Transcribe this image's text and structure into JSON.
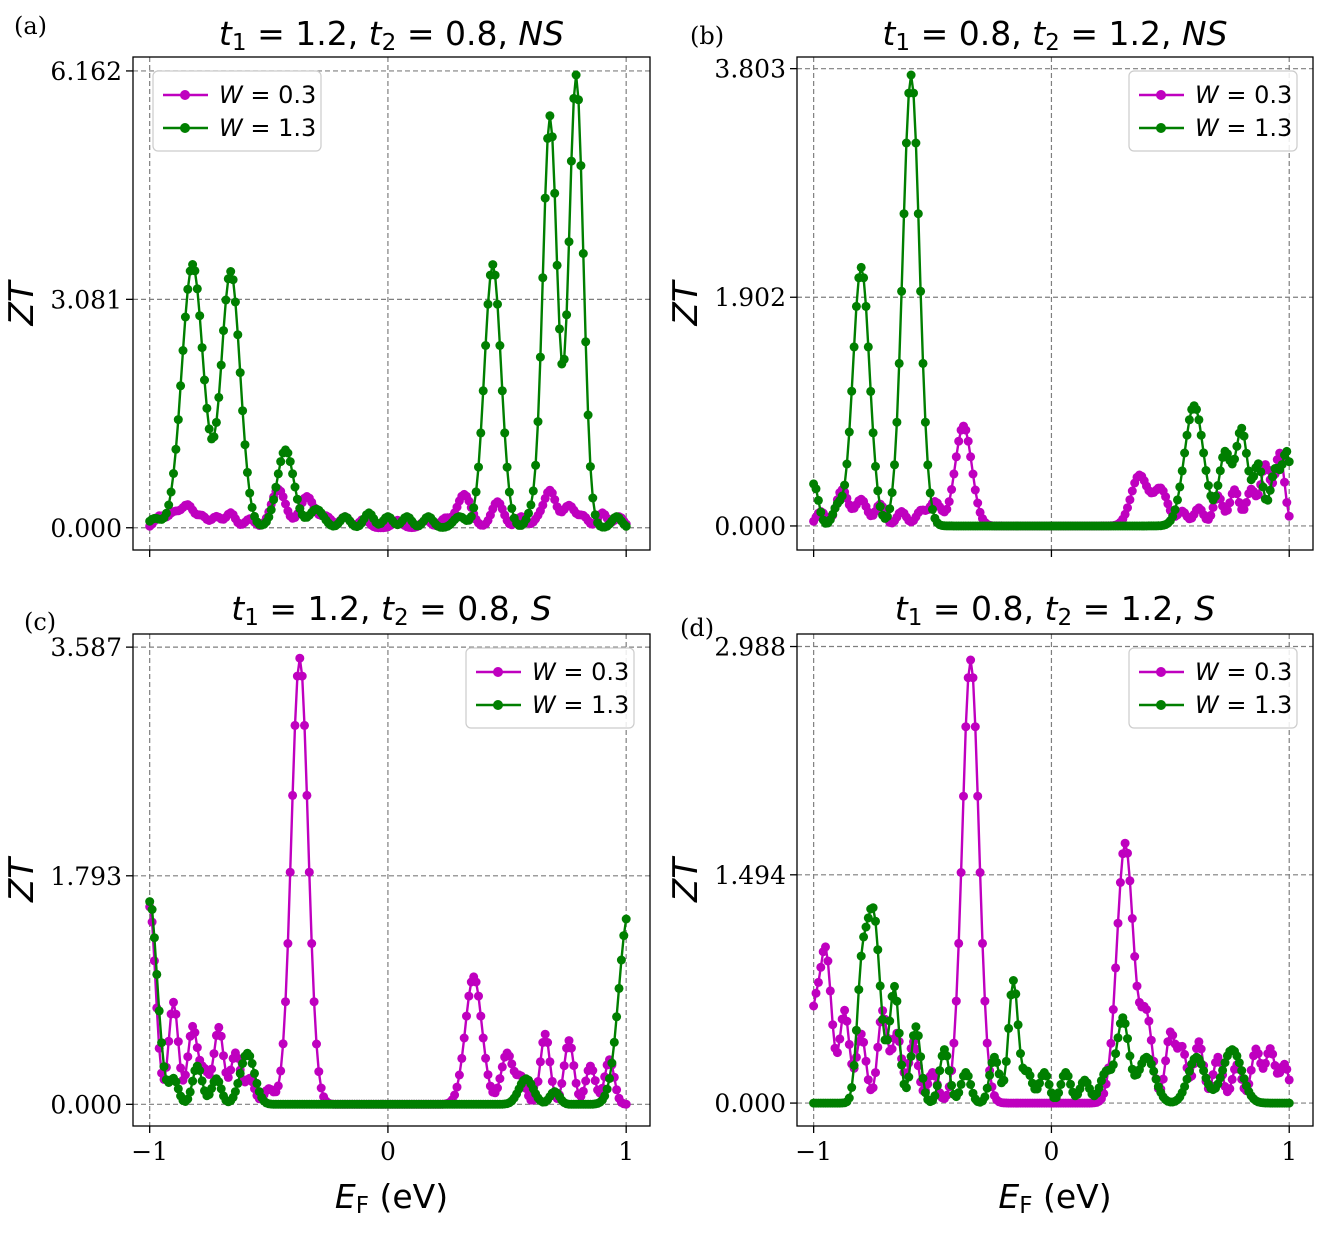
{
  "chart_data": [
    {
      "type": "line",
      "panel_label": "(a)",
      "title_parts": [
        "t",
        "1",
        " = 1.2, ",
        "t",
        "2",
        " = 0.8, ",
        "NS"
      ],
      "xlabel_parts": [
        "E",
        "F",
        " (eV)"
      ],
      "ylabel": "ZT",
      "xlim": [
        -1.07,
        1.1
      ],
      "ylim": [
        -0.3,
        6.35
      ],
      "xticks": [
        -1,
        0,
        1
      ],
      "xtick_labels": [
        "",
        "",
        ""
      ],
      "yticks": [
        0.0,
        3.081,
        6.162
      ],
      "ytick_labels": [
        "0.000",
        "3.081",
        "6.162"
      ],
      "grid": true,
      "legend_position": "upper left",
      "series": [
        {
          "name_parts": [
            "W",
            " = 0.3"
          ],
          "color": "#bf00bf",
          "peaks": [
            [
              -0.96,
              0.15,
              0.02
            ],
            [
              -0.9,
              0.2,
              0.025
            ],
            [
              -0.84,
              0.3,
              0.025
            ],
            [
              -0.78,
              0.15,
              0.02
            ],
            [
              -0.72,
              0.15,
              0.02
            ],
            [
              -0.66,
              0.2,
              0.02
            ],
            [
              -0.58,
              0.12,
              0.02
            ],
            [
              -0.46,
              0.52,
              0.03
            ],
            [
              -0.34,
              0.42,
              0.03
            ],
            [
              -0.26,
              0.15,
              0.025
            ],
            [
              -0.18,
              0.15,
              0.02
            ],
            [
              -0.1,
              0.12,
              0.02
            ],
            [
              0.04,
              0.1,
              0.02
            ],
            [
              0.16,
              0.1,
              0.02
            ],
            [
              0.24,
              0.12,
              0.02
            ],
            [
              0.32,
              0.45,
              0.03
            ],
            [
              0.46,
              0.35,
              0.025
            ],
            [
              0.56,
              0.15,
              0.02
            ],
            [
              0.63,
              0.1,
              0.02
            ],
            [
              0.68,
              0.5,
              0.025
            ],
            [
              0.76,
              0.3,
              0.025
            ],
            [
              0.82,
              0.15,
              0.02
            ],
            [
              0.9,
              0.2,
              0.02
            ],
            [
              0.97,
              0.15,
              0.02
            ]
          ]
        },
        {
          "name_parts": [
            "W",
            " = 1.3"
          ],
          "color": "#007f00",
          "peaks": [
            [
              -0.98,
              0.12,
              0.025
            ],
            [
              -0.82,
              3.55,
              0.045
            ],
            [
              -0.66,
              3.45,
              0.04
            ],
            [
              -0.43,
              1.05,
              0.035
            ],
            [
              -0.3,
              0.25,
              0.03
            ],
            [
              -0.18,
              0.15,
              0.02
            ],
            [
              -0.08,
              0.2,
              0.02
            ],
            [
              0.0,
              0.15,
              0.02
            ],
            [
              0.08,
              0.15,
              0.02
            ],
            [
              0.17,
              0.15,
              0.02
            ],
            [
              0.3,
              0.15,
              0.025
            ],
            [
              0.44,
              3.55,
              0.035
            ],
            [
              0.6,
              0.15,
              0.02
            ],
            [
              0.68,
              5.55,
              0.03
            ],
            [
              0.79,
              6.1,
              0.03
            ],
            [
              0.96,
              0.15,
              0.02
            ]
          ]
        }
      ]
    },
    {
      "type": "line",
      "panel_label": "(b)",
      "title_parts": [
        "t",
        "1",
        " = 0.8, ",
        "t",
        "2",
        " = 1.2, ",
        "NS"
      ],
      "xlabel_parts": [
        "E",
        "F",
        " (eV)"
      ],
      "ylabel": "ZT",
      "xlim": [
        -1.07,
        1.1
      ],
      "ylim": [
        -0.2,
        3.9
      ],
      "xticks": [
        -1,
        0,
        1
      ],
      "xtick_labels": [
        "",
        "",
        ""
      ],
      "yticks": [
        0.0,
        1.902,
        3.803
      ],
      "ytick_labels": [
        "0.000",
        "1.902",
        "3.803"
      ],
      "grid": true,
      "legend_position": "upper right",
      "series": [
        {
          "name_parts": [
            "W",
            " = 0.3"
          ],
          "color": "#bf00bf",
          "peaks": [
            [
              -0.97,
              0.12,
              0.02
            ],
            [
              -0.88,
              0.3,
              0.025
            ],
            [
              -0.8,
              0.22,
              0.025
            ],
            [
              -0.72,
              0.18,
              0.02
            ],
            [
              -0.63,
              0.12,
              0.02
            ],
            [
              -0.55,
              0.12,
              0.02
            ],
            [
              -0.49,
              0.2,
              0.025
            ],
            [
              -0.37,
              0.83,
              0.035
            ],
            [
              0.37,
              0.42,
              0.035
            ],
            [
              0.46,
              0.3,
              0.03
            ],
            [
              0.55,
              0.12,
              0.02
            ],
            [
              0.62,
              0.15,
              0.02
            ],
            [
              0.7,
              0.25,
              0.02
            ],
            [
              0.77,
              0.3,
              0.02
            ],
            [
              0.84,
              0.3,
              0.02
            ],
            [
              0.9,
              0.5,
              0.02
            ],
            [
              0.96,
              0.6,
              0.02
            ]
          ]
        },
        {
          "name_parts": [
            "W",
            " = 1.3"
          ],
          "color": "#007f00",
          "peaks": [
            [
              -1.0,
              0.35,
              0.02
            ],
            [
              -0.9,
              0.15,
              0.02
            ],
            [
              -0.8,
              2.15,
              0.035
            ],
            [
              -0.59,
              3.75,
              0.035
            ],
            [
              0.6,
              1.0,
              0.04
            ],
            [
              0.73,
              0.6,
              0.025
            ],
            [
              0.8,
              0.8,
              0.025
            ],
            [
              0.87,
              0.5,
              0.02
            ],
            [
              0.94,
              0.45,
              0.02
            ],
            [
              0.99,
              0.6,
              0.02
            ]
          ]
        }
      ]
    },
    {
      "type": "line",
      "panel_label": "(c)",
      "title_parts": [
        "t",
        "1",
        " = 1.2, ",
        "t",
        "2",
        " = 0.8, ",
        "S"
      ],
      "xlabel_parts": [
        "E",
        "F",
        " (eV)"
      ],
      "ylabel": "ZT",
      "xlim": [
        -1.07,
        1.1
      ],
      "ylim": [
        -0.17,
        3.69
      ],
      "xticks": [
        -1,
        0,
        1
      ],
      "xtick_labels": [
        "−1",
        "0",
        "1"
      ],
      "yticks": [
        0.0,
        1.793,
        3.587
      ],
      "ytick_labels": [
        "0.000",
        "1.793",
        "3.587"
      ],
      "grid": true,
      "legend_position": "upper right",
      "series": [
        {
          "name_parts": [
            "W",
            " = 0.3"
          ],
          "color": "#bf00bf",
          "peaks": [
            [
              -1.0,
              1.55,
              0.025
            ],
            [
              -0.9,
              0.8,
              0.02
            ],
            [
              -0.82,
              0.6,
              0.02
            ],
            [
              -0.77,
              0.25,
              0.02
            ],
            [
              -0.71,
              0.6,
              0.02
            ],
            [
              -0.64,
              0.4,
              0.02
            ],
            [
              -0.58,
              0.2,
              0.02
            ],
            [
              -0.5,
              0.12,
              0.02
            ],
            [
              -0.37,
              3.5,
              0.035
            ],
            [
              0.36,
              1.0,
              0.035
            ],
            [
              0.5,
              0.4,
              0.025
            ],
            [
              0.56,
              0.2,
              0.02
            ],
            [
              0.66,
              0.55,
              0.02
            ],
            [
              0.76,
              0.5,
              0.02
            ],
            [
              0.85,
              0.3,
              0.02
            ],
            [
              0.93,
              0.35,
              0.02
            ]
          ]
        },
        {
          "name_parts": [
            "W",
            " = 1.3"
          ],
          "color": "#007f00",
          "peaks": [
            [
              -1.0,
              1.55,
              0.025
            ],
            [
              -0.96,
              0.3,
              0.02
            ],
            [
              -0.9,
              0.2,
              0.02
            ],
            [
              -0.8,
              0.3,
              0.02
            ],
            [
              -0.72,
              0.2,
              0.02
            ],
            [
              -0.59,
              0.4,
              0.03
            ],
            [
              0.58,
              0.2,
              0.03
            ],
            [
              0.7,
              0.1,
              0.02
            ],
            [
              1.01,
              1.5,
              0.04
            ]
          ]
        }
      ]
    },
    {
      "type": "line",
      "panel_label": "(d)",
      "title_parts": [
        "t",
        "1",
        " = 0.8, ",
        "t",
        "2",
        " = 1.2, ",
        "S"
      ],
      "xlabel_parts": [
        "E",
        "F",
        " (eV)"
      ],
      "ylabel": "ZT",
      "xlim": [
        -1.07,
        1.1
      ],
      "ylim": [
        -0.15,
        3.07
      ],
      "xticks": [
        -1,
        0,
        1
      ],
      "xtick_labels": [
        "−1",
        "0",
        "1"
      ],
      "yticks": [
        0.0,
        1.494,
        2.988
      ],
      "ytick_labels": [
        "0.000",
        "1.494",
        "2.988"
      ],
      "grid": true,
      "legend_position": "upper right",
      "series": [
        {
          "name_parts": [
            "W",
            " = 0.3"
          ],
          "color": "#bf00bf",
          "peaks": [
            [
              -1.0,
              0.5,
              0.02
            ],
            [
              -0.95,
              1.0,
              0.025
            ],
            [
              -0.87,
              0.6,
              0.02
            ],
            [
              -0.8,
              0.45,
              0.02
            ],
            [
              -0.71,
              0.6,
              0.02
            ],
            [
              -0.65,
              0.45,
              0.02
            ],
            [
              -0.58,
              0.4,
              0.02
            ],
            [
              -0.5,
              0.2,
              0.02
            ],
            [
              -0.34,
              2.9,
              0.035
            ],
            [
              0.31,
              1.7,
              0.035
            ],
            [
              0.4,
              0.55,
              0.025
            ],
            [
              0.5,
              0.45,
              0.02
            ],
            [
              0.55,
              0.35,
              0.02
            ],
            [
              0.62,
              0.4,
              0.02
            ],
            [
              0.7,
              0.3,
              0.02
            ],
            [
              0.78,
              0.25,
              0.02
            ],
            [
              0.86,
              0.35,
              0.02
            ],
            [
              0.92,
              0.35,
              0.02
            ],
            [
              0.98,
              0.25,
              0.02
            ]
          ]
        },
        {
          "name_parts": [
            "W",
            " = 1.3"
          ],
          "color": "#007f00",
          "peaks": [
            [
              -0.8,
              0.65,
              0.02
            ],
            [
              -0.75,
              1.25,
              0.03
            ],
            [
              -0.66,
              0.75,
              0.02
            ],
            [
              -0.57,
              0.5,
              0.02
            ],
            [
              -0.45,
              0.35,
              0.02
            ],
            [
              -0.36,
              0.2,
              0.02
            ],
            [
              -0.24,
              0.3,
              0.02
            ],
            [
              -0.16,
              0.8,
              0.02
            ],
            [
              -0.1,
              0.2,
              0.02
            ],
            [
              -0.03,
              0.2,
              0.02
            ],
            [
              0.06,
              0.2,
              0.02
            ],
            [
              0.14,
              0.15,
              0.02
            ],
            [
              0.23,
              0.2,
              0.025
            ],
            [
              0.3,
              0.55,
              0.025
            ],
            [
              0.4,
              0.3,
              0.035
            ],
            [
              0.61,
              0.3,
              0.035
            ],
            [
              0.76,
              0.35,
              0.04
            ]
          ]
        }
      ]
    }
  ]
}
